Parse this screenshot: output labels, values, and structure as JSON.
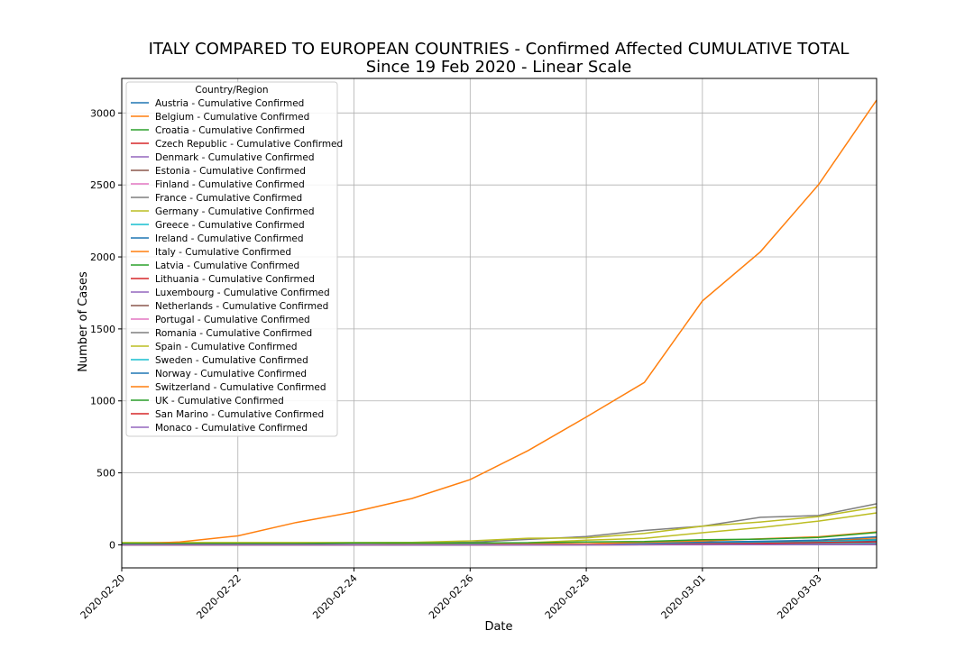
{
  "chart_data": {
    "type": "line",
    "title": "ITALY COMPARED TO EUROPEAN COUNTRIES - Confirmed Affected CUMULATIVE TOTAL",
    "subtitle": "Since 19 Feb 2020 - Linear Scale",
    "xlabel": "Date",
    "ylabel": "Number of Cases",
    "xlim": [
      "2020-02-20",
      "2020-03-04"
    ],
    "ylim": [
      -160,
      3240
    ],
    "x_ticks": [
      "2020-02-20",
      "2020-02-22",
      "2020-02-24",
      "2020-02-26",
      "2020-02-28",
      "2020-03-01",
      "2020-03-03"
    ],
    "y_ticks": [
      0,
      500,
      1000,
      1500,
      2000,
      2500,
      3000
    ],
    "grid": true,
    "legend": {
      "title": "Country/Region",
      "placement": "top-left"
    },
    "x": [
      "2020-02-20",
      "2020-02-21",
      "2020-02-22",
      "2020-02-23",
      "2020-02-24",
      "2020-02-25",
      "2020-02-26",
      "2020-02-27",
      "2020-02-28",
      "2020-02-29",
      "2020-03-01",
      "2020-03-02",
      "2020-03-03",
      "2020-03-04"
    ],
    "series": [
      {
        "name": "Austria - Cumulative Confirmed",
        "color": "#1f77b4",
        "values": [
          0,
          0,
          0,
          0,
          0,
          2,
          2,
          3,
          3,
          9,
          14,
          18,
          21,
          29
        ]
      },
      {
        "name": "Belgium - Cumulative Confirmed",
        "color": "#ff7f0e",
        "values": [
          1,
          1,
          1,
          1,
          1,
          1,
          1,
          1,
          1,
          2,
          8,
          13,
          23,
          50
        ]
      },
      {
        "name": "Croatia - Cumulative Confirmed",
        "color": "#2ca02c",
        "values": [
          0,
          0,
          0,
          0,
          0,
          1,
          3,
          3,
          5,
          7,
          7,
          7,
          9,
          10
        ]
      },
      {
        "name": "Czech Republic - Cumulative Confirmed",
        "color": "#d62728",
        "values": [
          0,
          0,
          0,
          0,
          0,
          0,
          0,
          0,
          0,
          0,
          3,
          3,
          5,
          5
        ]
      },
      {
        "name": "Denmark - Cumulative Confirmed",
        "color": "#9467bd",
        "values": [
          0,
          0,
          0,
          0,
          0,
          0,
          0,
          1,
          1,
          3,
          4,
          4,
          6,
          10
        ]
      },
      {
        "name": "Estonia - Cumulative Confirmed",
        "color": "#8c564b",
        "values": [
          0,
          0,
          0,
          0,
          0,
          0,
          0,
          1,
          1,
          1,
          1,
          1,
          1,
          2
        ]
      },
      {
        "name": "Finland - Cumulative Confirmed",
        "color": "#e377c2",
        "values": [
          1,
          1,
          1,
          1,
          1,
          1,
          2,
          2,
          2,
          3,
          6,
          6,
          6,
          6
        ]
      },
      {
        "name": "France - Cumulative Confirmed",
        "color": "#7f7f7f",
        "values": [
          12,
          12,
          12,
          12,
          12,
          14,
          18,
          38,
          57,
          100,
          130,
          191,
          204,
          285
        ]
      },
      {
        "name": "Germany - Cumulative Confirmed",
        "color": "#bcbd22",
        "values": [
          16,
          16,
          16,
          16,
          16,
          17,
          27,
          46,
          48,
          79,
          130,
          159,
          196,
          262
        ]
      },
      {
        "name": "Greece - Cumulative Confirmed",
        "color": "#17becf",
        "values": [
          0,
          0,
          0,
          0,
          0,
          0,
          1,
          3,
          4,
          4,
          7,
          7,
          7,
          9
        ]
      },
      {
        "name": "Ireland - Cumulative Confirmed",
        "color": "#1f77b4",
        "values": [
          0,
          0,
          0,
          0,
          0,
          0,
          0,
          0,
          0,
          1,
          1,
          1,
          2,
          6
        ]
      },
      {
        "name": "Italy - Cumulative Confirmed",
        "color": "#ff7f0e",
        "values": [
          3,
          20,
          62,
          155,
          229,
          322,
          453,
          655,
          888,
          1128,
          1694,
          2036,
          2502,
          3089
        ]
      },
      {
        "name": "Latvia - Cumulative Confirmed",
        "color": "#2ca02c",
        "values": [
          0,
          0,
          0,
          0,
          0,
          0,
          0,
          0,
          0,
          1,
          1,
          1,
          1,
          1
        ]
      },
      {
        "name": "Lithuania - Cumulative Confirmed",
        "color": "#d62728",
        "values": [
          0,
          0,
          0,
          0,
          0,
          0,
          0,
          0,
          1,
          1,
          1,
          1,
          1,
          1
        ]
      },
      {
        "name": "Luxembourg - Cumulative Confirmed",
        "color": "#9467bd",
        "values": [
          0,
          0,
          0,
          0,
          0,
          0,
          0,
          0,
          0,
          1,
          1,
          1,
          1,
          2
        ]
      },
      {
        "name": "Netherlands - Cumulative Confirmed",
        "color": "#8c564b",
        "values": [
          0,
          0,
          0,
          0,
          0,
          0,
          0,
          1,
          1,
          6,
          10,
          18,
          24,
          38
        ]
      },
      {
        "name": "Portugal - Cumulative Confirmed",
        "color": "#e377c2",
        "values": [
          0,
          0,
          0,
          0,
          0,
          0,
          0,
          0,
          0,
          0,
          0,
          2,
          2,
          5
        ]
      },
      {
        "name": "Romania - Cumulative Confirmed",
        "color": "#7f7f7f",
        "values": [
          0,
          0,
          0,
          0,
          0,
          0,
          1,
          1,
          3,
          3,
          3,
          3,
          3,
          4
        ]
      },
      {
        "name": "Spain - Cumulative Confirmed",
        "color": "#bcbd22",
        "values": [
          2,
          2,
          2,
          2,
          2,
          6,
          13,
          15,
          32,
          45,
          84,
          120,
          165,
          222
        ]
      },
      {
        "name": "Sweden - Cumulative Confirmed",
        "color": "#17becf",
        "values": [
          1,
          1,
          1,
          1,
          1,
          1,
          2,
          7,
          7,
          12,
          14,
          15,
          21,
          35
        ]
      },
      {
        "name": "Norway - Cumulative Confirmed",
        "color": "#1f77b4",
        "values": [
          0,
          0,
          0,
          0,
          0,
          0,
          1,
          1,
          6,
          15,
          19,
          25,
          32,
          56
        ]
      },
      {
        "name": "Switzerland - Cumulative Confirmed",
        "color": "#ff7f0e",
        "values": [
          0,
          0,
          0,
          0,
          0,
          1,
          1,
          8,
          8,
          18,
          27,
          42,
          56,
          90
        ]
      },
      {
        "name": "UK - Cumulative Confirmed",
        "color": "#2ca02c",
        "values": [
          9,
          9,
          9,
          9,
          13,
          13,
          13,
          15,
          20,
          23,
          36,
          40,
          51,
          86
        ]
      },
      {
        "name": "San Marino - Cumulative Confirmed",
        "color": "#d62728",
        "values": [
          0,
          0,
          0,
          0,
          0,
          0,
          0,
          1,
          1,
          1,
          8,
          10,
          16,
          21
        ]
      },
      {
        "name": "Monaco - Cumulative Confirmed",
        "color": "#9467bd",
        "values": [
          0,
          0,
          0,
          0,
          0,
          0,
          0,
          0,
          0,
          1,
          1,
          1,
          1,
          1
        ]
      }
    ]
  }
}
